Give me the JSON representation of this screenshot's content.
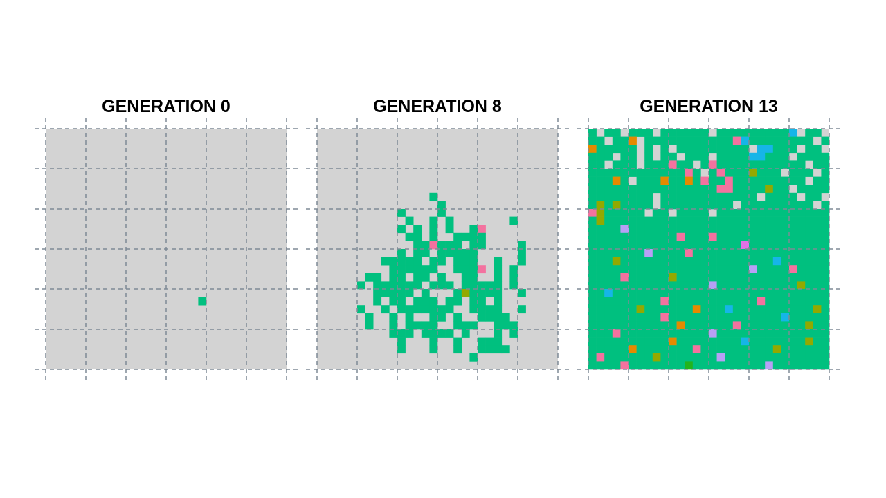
{
  "colors": {
    "empty": "#d3d3d3",
    "gridline": "#7e8a96",
    "palette": [
      "#00c07f",
      "#f3729f",
      "#e58a00",
      "#16b5e8",
      "#b7a0f5",
      "#93a900",
      "#e071e5",
      "#23b41d"
    ]
  },
  "panels": [
    {
      "title": "GENERATION 0",
      "rows": [
        "..............................",
        "..............................",
        "..............................",
        "..............................",
        "..............................",
        "..............................",
        "..............................",
        "..............................",
        "..............................",
        "..............................",
        "..............................",
        "..............................",
        "..............................",
        "..............................",
        "..............................",
        "..............................",
        "..............................",
        "..............................",
        "..............................",
        "..............................",
        "..............................",
        "...................A..........",
        "..............................",
        "..............................",
        "..............................",
        "..............................",
        "..............................",
        "..............................",
        "..............................",
        ".............................."
      ]
    },
    {
      "title": "GENERATION 8",
      "rows": [
        "..............................",
        "..............................",
        "..............................",
        "..............................",
        "..............................",
        "..............................",
        "..............................",
        "..............................",
        "..............A...............",
        "...............A..............",
        "..........A....A..............",
        "...........A..A.A.......A.....",
        "..........A.A.A.A..AB.........",
        "...........AA.A..AAAA.........",
        "............AABAAA.AA....A....",
        "..........A.AA.AAAAA.....A....",
        "........AAAAA.AA.AAA..A..A....",
        ".........AAAAAA..AAAB.A.A.....",
        "......AA.AA.AA.A..AA..A.A.....",
        ".....A.AAAAAA.AAA.AAAAA.A.....",
        ".......AAAAA.A...AFAAAA..A....",
        ".......A.AA.AAA.AA.AA.A.......",
        ".....A..A.AAAAAAA..AAAA..A....",
        "......A..A.A..AA.A..AAAA......",
        "......A..A.AAAA..AAA..AAA.....",
        ".........AAA.AAAA.A...A.A.....",
        "..........A...A..A..AAA.......",
        "..........A...A..A..AAAA......",
        "...................A..........",
        ".............................."
      ]
    },
    {
      "title": "GENERATION 13",
      "rows": [
        "A.AA.AAA.AAAAAA.AAAAAAAAAD.AA.",
        "AA.AAC.AAAAAAAAAAABDAAAAAAAA.A",
        "CAAAAA.A.A.AAAAAAAAA.DDAAA.AA.",
        "AAA.AA.A.AA.AAA.AAAADDAAA.AAAA",
        "AA.AAA.AAABAA.ABAAAAAAAAAAA.AA",
        "AAAAAAAAAAAAAA.ABAAAFAAA.AAA.A",
        "AAACA.AAACAACAAAABAAAAAAAAA.AA",
        "AAAAAAAAAAAAAAAABBAAAAFAA.AAAA",
        "AAAAAAAA.AAAAAAAAAAAA.AAAA.AA.",
        "AFAAAAAA.AAAAAAAAA.AAAAAAAAA.A",
        "AFAAAAA.AA.AAAA.AAAAAAAAAAAAAA",
        "AAAAAAAAAAAAAAAAAAAAAAAAAAAAAA",
        "AAAAAAAAAAAAAAAAAAAAAAAAAAAAAA",
        "AAAAAAAAAAAAAAAAAAAAAAAAAAAAAA",
        "AAAAAAAAAAAAAAAAAAAAAAAAAAAAAA",
        "AAAAAAAAAAAAAAAAAAAAAAAAAAAAAA",
        "AAAAAAAAAAAAAAAAAAAAAAAAAAAAAA",
        "AAAAAAAAAAAAAAAAAAAAAAAAAAAAAA",
        "AAAAAAAAAAAAAAAAAAAAAAAAAAAAAA",
        "AAAAAAAAAAAAAAAAAAAAAAAAAAAAAA",
        "AAAAAAAAAAAAAAAAAAAAAAAAAAAAAA",
        "AAAAAAAAAAAAAAAAAAAAAAAAAAAAAA",
        "AAAAAAAAAAAAAAAAAAAAAAAAAAAAAA",
        "AAAAAAAAAAAAAAAAAAAAAAAAAAAAAA",
        "AAAAAAAAAAAAAAAAAAAAAAAAAAAAAA",
        "AAAAAAAAAAAAAAAAAAAAAAAAAAAAAA",
        "AAAAAAAAAAAAAAAAAAAAAAAAAAAAAA",
        "AAAAAAAAAAAAAAAAAAAAAAAAAAAAAA",
        "AAAAAAAAAAAAAAAAAAAAAAAAAAAAAA",
        "AAAAAAAAAAAAAAAAAAAAAAAAAAAAAA"
      ],
      "spots": [
        [
          5,
          12,
          "B"
        ],
        [
          6,
          14,
          "B"
        ],
        [
          7,
          22,
          "F"
        ],
        [
          9,
          1,
          "F"
        ],
        [
          9,
          3,
          "F"
        ],
        [
          10,
          0,
          "B"
        ],
        [
          11,
          1,
          "F"
        ],
        [
          12,
          4,
          "E"
        ],
        [
          13,
          11,
          "B"
        ],
        [
          13,
          15,
          "B"
        ],
        [
          14,
          19,
          "G"
        ],
        [
          15,
          7,
          "E"
        ],
        [
          15,
          12,
          "B"
        ],
        [
          16,
          3,
          "F"
        ],
        [
          16,
          23,
          "D"
        ],
        [
          17,
          20,
          "E"
        ],
        [
          17,
          25,
          "B"
        ],
        [
          18,
          10,
          "F"
        ],
        [
          19,
          26,
          "F"
        ],
        [
          20,
          14,
          "A"
        ],
        [
          21,
          21,
          "B"
        ],
        [
          22,
          6,
          "F"
        ],
        [
          22,
          13,
          "C"
        ],
        [
          22,
          17,
          "D"
        ],
        [
          23,
          9,
          "B"
        ],
        [
          24,
          11,
          "C"
        ],
        [
          24,
          27,
          "F"
        ],
        [
          25,
          3,
          "B"
        ],
        [
          25,
          15,
          "E"
        ],
        [
          26,
          10,
          "C"
        ],
        [
          26,
          19,
          "D"
        ],
        [
          27,
          5,
          "C"
        ],
        [
          27,
          23,
          "F"
        ],
        [
          28,
          1,
          "B"
        ],
        [
          28,
          8,
          "F"
        ],
        [
          28,
          16,
          "E"
        ],
        [
          29,
          4,
          "B"
        ],
        [
          29,
          12,
          "H"
        ],
        [
          29,
          22,
          "E"
        ],
        [
          20,
          2,
          "D"
        ],
        [
          21,
          9,
          "B"
        ],
        [
          23,
          24,
          "D"
        ],
        [
          18,
          4,
          "B"
        ],
        [
          19,
          15,
          "E"
        ],
        [
          24,
          18,
          "B"
        ],
        [
          26,
          27,
          "F"
        ],
        [
          27,
          13,
          "B"
        ],
        [
          22,
          28,
          "F"
        ]
      ]
    }
  ]
}
